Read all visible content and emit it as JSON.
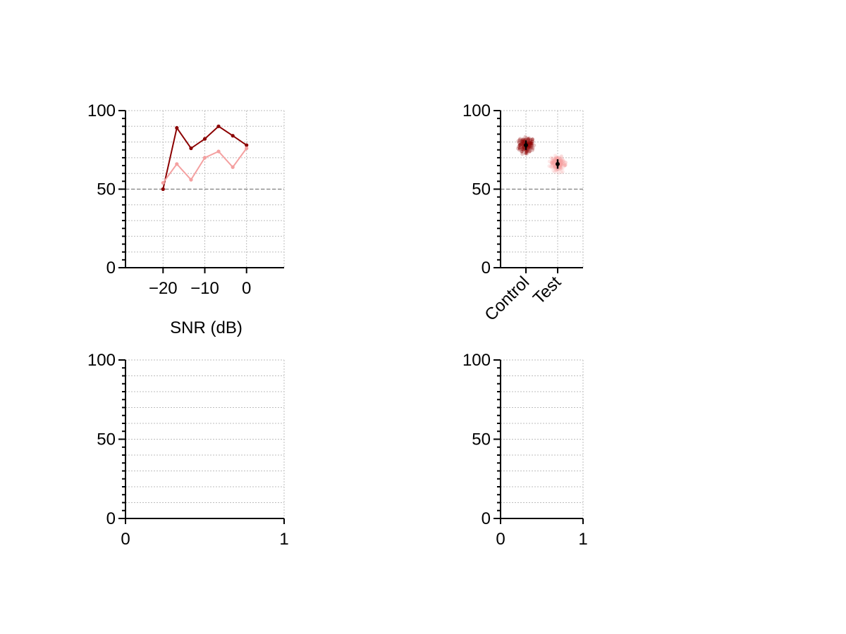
{
  "colors": {
    "dark_red": "#8b0000",
    "light_red": "#f4a0a0",
    "reference_line": "#808080",
    "grid": "#bdbdbd"
  },
  "chart_data": [
    {
      "type": "line",
      "xlabel": "SNR (dB)",
      "ylabel": "",
      "xlim": [
        -29,
        9
      ],
      "ylim": [
        0,
        100
      ],
      "xticks": [
        -20,
        -10,
        0
      ],
      "xtick_labels": [
        "−20",
        "−10",
        "0"
      ],
      "yticks": [
        0,
        50,
        100
      ],
      "ytick_labels": [
        "0",
        "50",
        "100"
      ],
      "grid": true,
      "reference_line_y": 50,
      "x": [
        -20,
        -16.7,
        -13.3,
        -10,
        -6.7,
        -3.3,
        0
      ],
      "series": [
        {
          "values": [
            50,
            89,
            76,
            82,
            90,
            84,
            78
          ],
          "color": "#8b0000"
        },
        {
          "values": [
            54,
            66,
            56,
            70,
            74,
            64,
            76
          ],
          "color": "#f4a0a0"
        }
      ]
    },
    {
      "type": "scatter",
      "xlabel": "",
      "ylabel": "",
      "categories": [
        "Control",
        "Test"
      ],
      "xlim": [
        -0.8,
        1.8
      ],
      "ylim": [
        0,
        100
      ],
      "yticks": [
        0,
        50,
        100
      ],
      "ytick_labels": [
        "0",
        "50",
        "100"
      ],
      "grid": true,
      "reference_line_y": 50,
      "groups": [
        {
          "category": "Control",
          "mean": 78,
          "error": 3,
          "spread": 3,
          "color": "#8b0000"
        },
        {
          "category": "Test",
          "mean": 66,
          "error": 3,
          "spread": 3,
          "color": "#f4a0a0"
        }
      ]
    },
    {
      "type": "line",
      "xlabel": "",
      "ylabel": "",
      "xlim": [
        0,
        1
      ],
      "ylim": [
        0,
        100
      ],
      "xticks": [
        0,
        1
      ],
      "xtick_labels": [
        "0",
        "1"
      ],
      "yticks": [
        0,
        50,
        100
      ],
      "ytick_labels": [
        "0",
        "50",
        "100"
      ],
      "grid": true,
      "series": []
    },
    {
      "type": "line",
      "xlabel": "",
      "ylabel": "",
      "xlim": [
        0,
        1
      ],
      "ylim": [
        0,
        100
      ],
      "xticks": [
        0,
        1
      ],
      "xtick_labels": [
        "0",
        "1"
      ],
      "yticks": [
        0,
        50,
        100
      ],
      "ytick_labels": [
        "0",
        "50",
        "100"
      ],
      "grid": true,
      "series": []
    }
  ]
}
